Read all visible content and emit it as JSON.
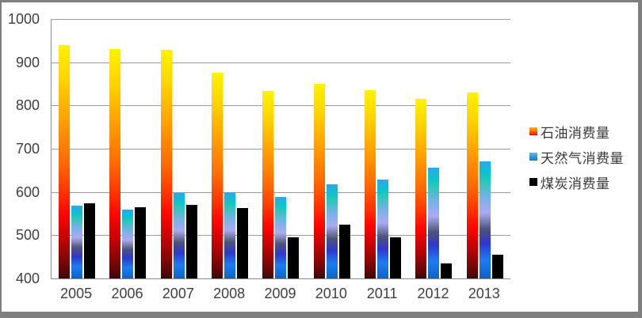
{
  "chart_data": {
    "type": "bar",
    "title": "",
    "xlabel": "",
    "ylabel": "",
    "categories": [
      "2005",
      "2006",
      "2007",
      "2008",
      "2009",
      "2010",
      "2011",
      "2012",
      "2013"
    ],
    "series": [
      {
        "key": "oil",
        "name": "石油消费量",
        "values": [
          940,
          930,
          928,
          875,
          833,
          850,
          835,
          816,
          830
        ]
      },
      {
        "key": "gas",
        "name": "天然气消费量",
        "values": [
          568,
          560,
          597,
          600,
          588,
          618,
          629,
          656,
          671
        ]
      },
      {
        "key": "coal",
        "name": "煤炭消费量",
        "values": [
          574,
          565,
          571,
          563,
          495,
          525,
          496,
          435,
          455
        ]
      }
    ],
    "ylim": [
      400,
      1000
    ],
    "yticks": [
      "400",
      "500",
      "600",
      "700",
      "800",
      "900",
      "1000"
    ],
    "grid": true,
    "legend_position": "right"
  },
  "colors": {
    "oil_gradient_top": "#fff200",
    "oil_gradient_mid": "#ff6a00",
    "oil_gradient_bottom": "#3f0707",
    "gas_gradient_top": "#2ba7e8",
    "gas_gradient_mid": "#abaaf2",
    "gas_gradient_bottom": "#0d64c8",
    "coal": "#000000",
    "gridline": "#9b9b9b",
    "axis_text": "#3f3f3f",
    "frame_border": "#7f7f7f",
    "background": "#ffffff"
  }
}
